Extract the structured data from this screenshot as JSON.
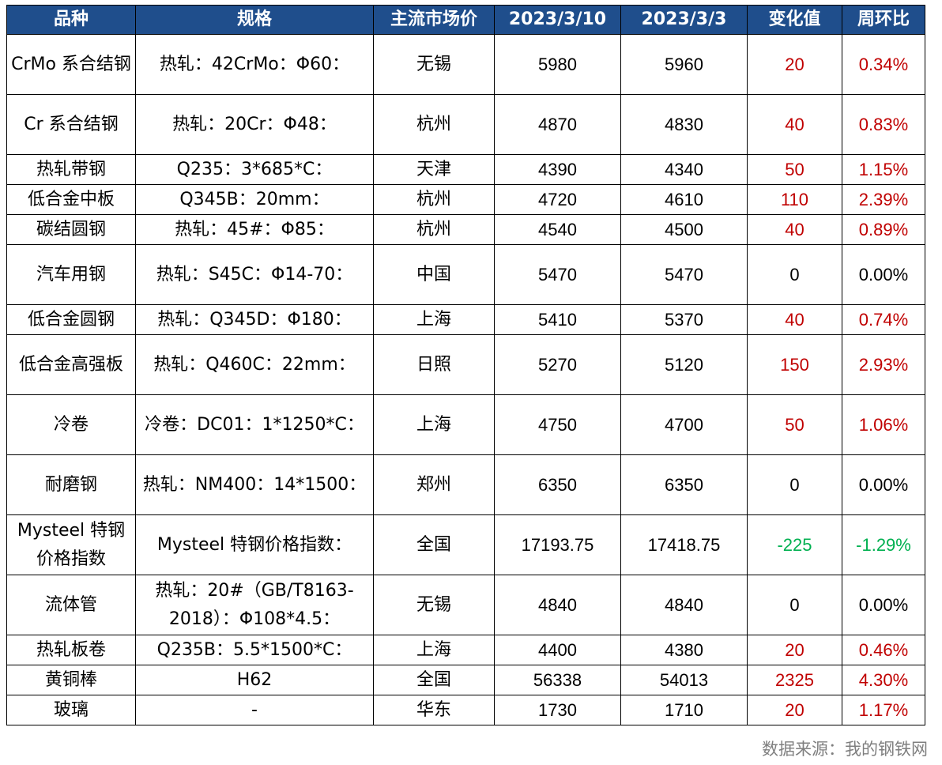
{
  "headers": [
    "品种",
    "规格",
    "主流市场价",
    "2023/3/10",
    "2023/3/3",
    "变化值",
    "周环比"
  ],
  "rows": [
    {
      "name": "CrMo 系合结钢",
      "spec": "热轧：42CrMo：Φ60：",
      "market": "无锡",
      "p1": "5980",
      "p2": "5960",
      "chg": "20",
      "pct": "0.34%",
      "dir": "up"
    },
    {
      "name": "Cr 系合结钢",
      "spec": "热轧：20Cr：Φ48：",
      "market": "杭州",
      "p1": "4870",
      "p2": "4830",
      "chg": "40",
      "pct": "0.83%",
      "dir": "up"
    },
    {
      "name": "热轧带钢",
      "spec": "Q235：3*685*C：",
      "market": "天津",
      "p1": "4390",
      "p2": "4340",
      "chg": "50",
      "pct": "1.15%",
      "dir": "up"
    },
    {
      "name": "低合金中板",
      "spec": "Q345B：20mm：",
      "market": "杭州",
      "p1": "4720",
      "p2": "4610",
      "chg": "110",
      "pct": "2.39%",
      "dir": "up"
    },
    {
      "name": "碳结圆钢",
      "spec": "热轧：45#：Φ85：",
      "market": "杭州",
      "p1": "4540",
      "p2": "4500",
      "chg": "40",
      "pct": "0.89%",
      "dir": "up"
    },
    {
      "name": "汽车用钢",
      "spec": "热轧：S45C：Φ14-70：",
      "market": "中国",
      "p1": "5470",
      "p2": "5470",
      "chg": "0",
      "pct": "0.00%",
      "dir": "flat"
    },
    {
      "name": "低合金圆钢",
      "spec": "热轧：Q345D：Φ180：",
      "market": "上海",
      "p1": "5410",
      "p2": "5370",
      "chg": "40",
      "pct": "0.74%",
      "dir": "up"
    },
    {
      "name": "低合金高强板",
      "spec": "热轧：Q460C：22mm：",
      "market": "日照",
      "p1": "5270",
      "p2": "5120",
      "chg": "150",
      "pct": "2.93%",
      "dir": "up"
    },
    {
      "name": "冷卷",
      "spec": "冷卷：DC01：1*1250*C：",
      "market": "上海",
      "p1": "4750",
      "p2": "4700",
      "chg": "50",
      "pct": "1.06%",
      "dir": "up"
    },
    {
      "name": "耐磨钢",
      "spec": "热轧：NM400：14*1500：",
      "market": "郑州",
      "p1": "6350",
      "p2": "6350",
      "chg": "0",
      "pct": "0.00%",
      "dir": "flat"
    },
    {
      "name": "Mysteel 特钢价格指数",
      "spec": "Mysteel 特钢价格指数：",
      "market": "全国",
      "p1": "17193.75",
      "p2": "17418.75",
      "chg": "-225",
      "pct": "-1.29%",
      "dir": "down"
    },
    {
      "name": "流体管",
      "spec": "热轧：20#（GB/T8163-2018）：Φ108*4.5：",
      "market": "无锡",
      "p1": "4840",
      "p2": "4840",
      "chg": "0",
      "pct": "0.00%",
      "dir": "flat"
    },
    {
      "name": "热轧板卷",
      "spec": "Q235B：5.5*1500*C：",
      "market": "上海",
      "p1": "4400",
      "p2": "4380",
      "chg": "20",
      "pct": "0.46%",
      "dir": "up"
    },
    {
      "name": "黄铜棒",
      "spec": "H62",
      "market": "全国",
      "p1": "56338",
      "p2": "54013",
      "chg": "2325",
      "pct": "4.30%",
      "dir": "up"
    },
    {
      "name": "玻璃",
      "spec": "-",
      "market": "华东",
      "p1": "1730",
      "p2": "1710",
      "chg": "20",
      "pct": "1.17%",
      "dir": "up"
    }
  ],
  "source": "数据来源：我的钢铁网",
  "colors": {
    "header_bg": "#1F4E8C",
    "up": "#C00000",
    "down": "#00B050"
  }
}
